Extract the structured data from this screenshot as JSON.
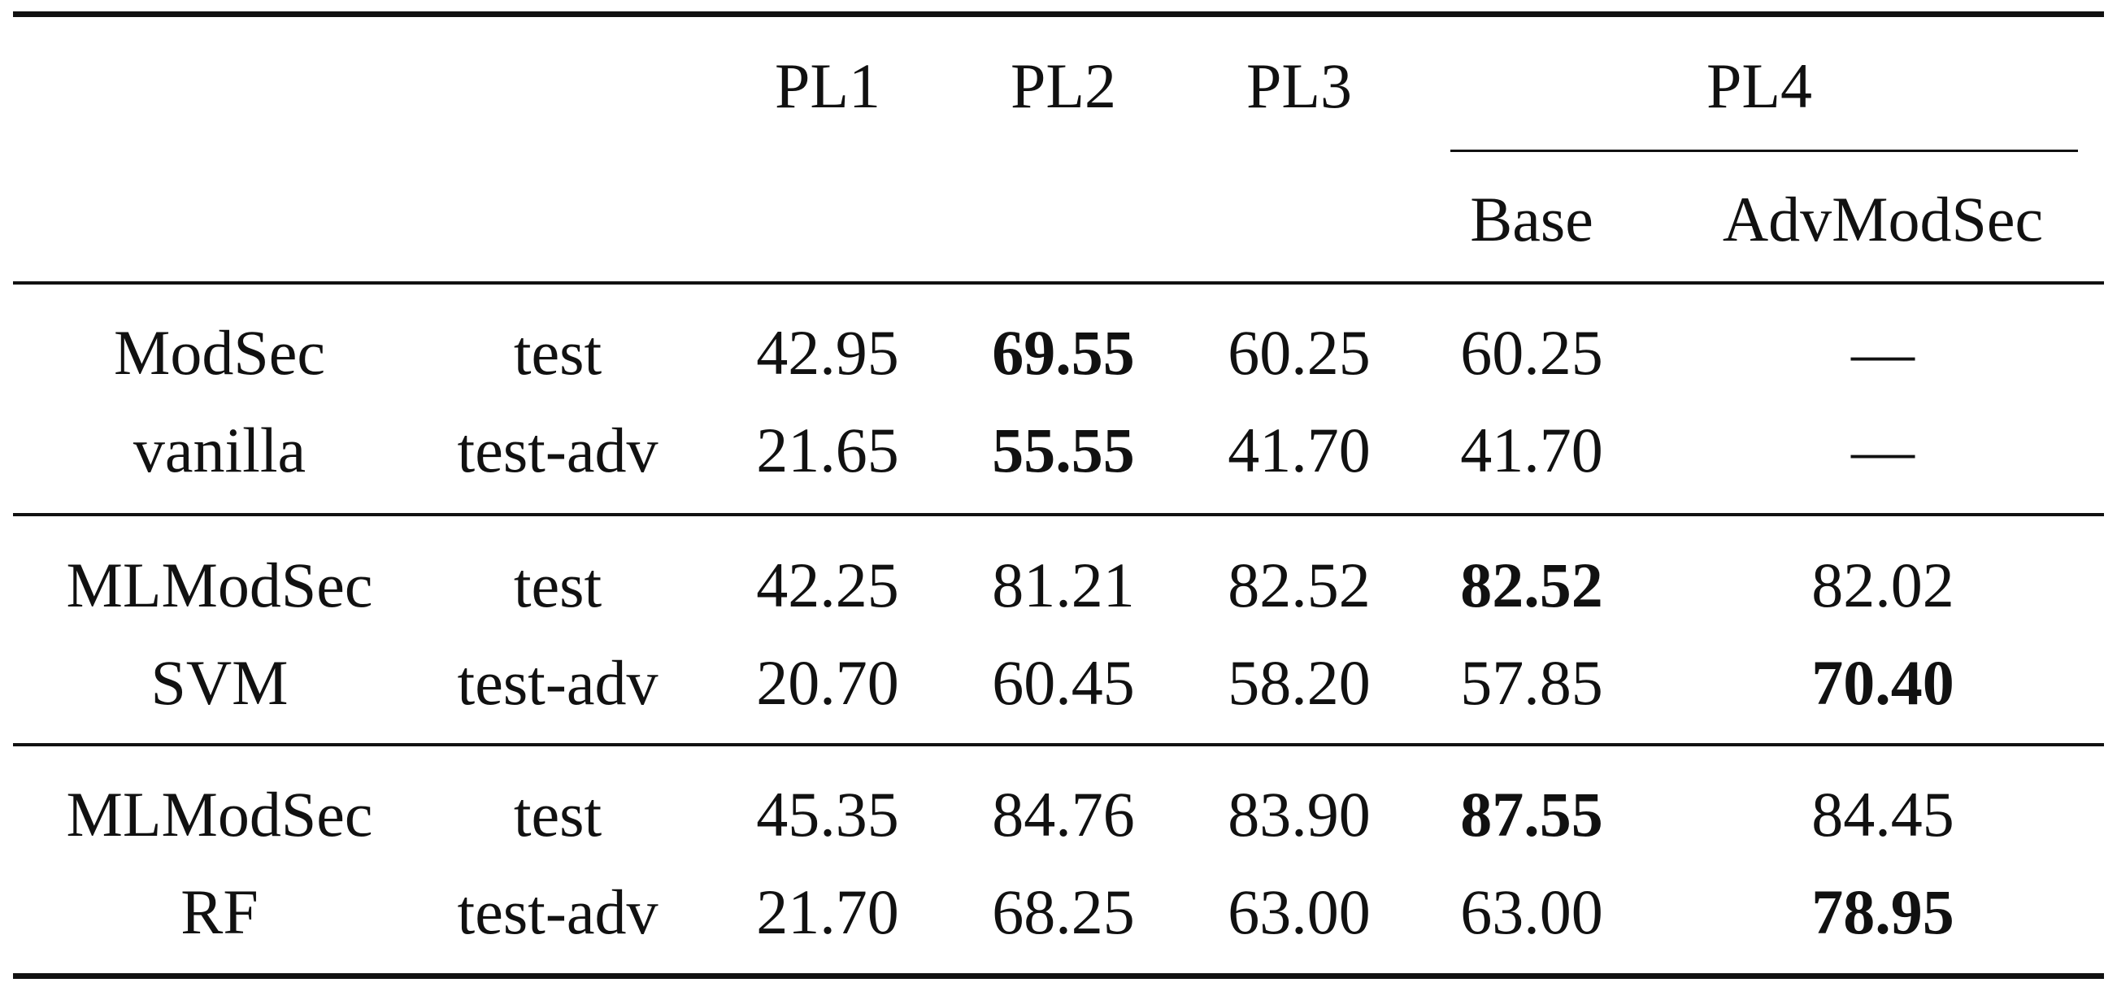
{
  "header": {
    "columns": [
      "PL1",
      "PL2",
      "PL3"
    ],
    "group_label": "PL4",
    "sub_columns": [
      "Base",
      "AdvModSec"
    ]
  },
  "groups": [
    {
      "name_lines": [
        "ModSec",
        "vanilla"
      ],
      "rows": [
        {
          "split": "test",
          "values": [
            "42.95",
            "69.55",
            "60.25",
            "60.25",
            "—"
          ],
          "bold": [
            false,
            true,
            false,
            false,
            false
          ]
        },
        {
          "split": "test-adv",
          "values": [
            "21.65",
            "55.55",
            "41.70",
            "41.70",
            "—"
          ],
          "bold": [
            false,
            true,
            false,
            false,
            false
          ]
        }
      ]
    },
    {
      "name_lines": [
        "MLModSec",
        "SVM"
      ],
      "rows": [
        {
          "split": "test",
          "values": [
            "42.25",
            "81.21",
            "82.52",
            "82.52",
            "82.02"
          ],
          "bold": [
            false,
            false,
            false,
            true,
            false
          ]
        },
        {
          "split": "test-adv",
          "values": [
            "20.70",
            "60.45",
            "58.20",
            "57.85",
            "70.40"
          ],
          "bold": [
            false,
            false,
            false,
            false,
            true
          ]
        }
      ]
    },
    {
      "name_lines": [
        "MLModSec",
        "RF"
      ],
      "rows": [
        {
          "split": "test",
          "values": [
            "45.35",
            "84.76",
            "83.90",
            "87.55",
            "84.45"
          ],
          "bold": [
            false,
            false,
            false,
            true,
            false
          ]
        },
        {
          "split": "test-adv",
          "values": [
            "21.70",
            "68.25",
            "63.00",
            "63.00",
            "78.95"
          ],
          "bold": [
            false,
            false,
            false,
            false,
            true
          ]
        }
      ]
    }
  ]
}
